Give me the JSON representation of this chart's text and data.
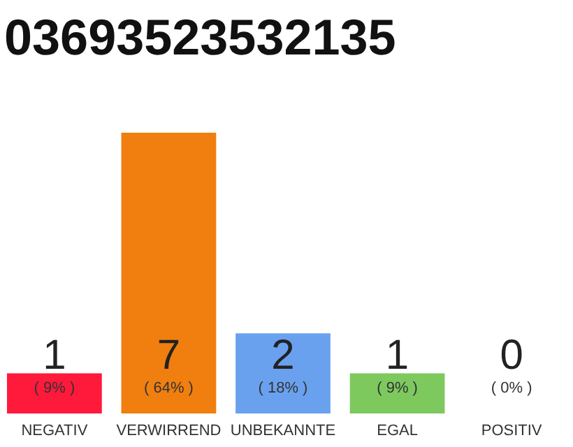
{
  "chart_data": {
    "type": "bar",
    "title": "03693523532135",
    "categories": [
      "NEGATIV",
      "VERWIRREND",
      "UNBEKANNTE",
      "EGAL",
      "POSITIV"
    ],
    "values": [
      1,
      7,
      2,
      1,
      0
    ],
    "colors": [
      "#ff1a3c",
      "#f07f0f",
      "#6aa1ef",
      "#7dc95e",
      "#cccccc"
    ],
    "value_labels": [
      "1",
      "7",
      "2",
      "1",
      "0"
    ],
    "annotations": [
      "( 9% )",
      "( 64% )",
      "( 18% )",
      "( 9% )",
      "( 0% )"
    ],
    "tick_labels": "x"
  }
}
